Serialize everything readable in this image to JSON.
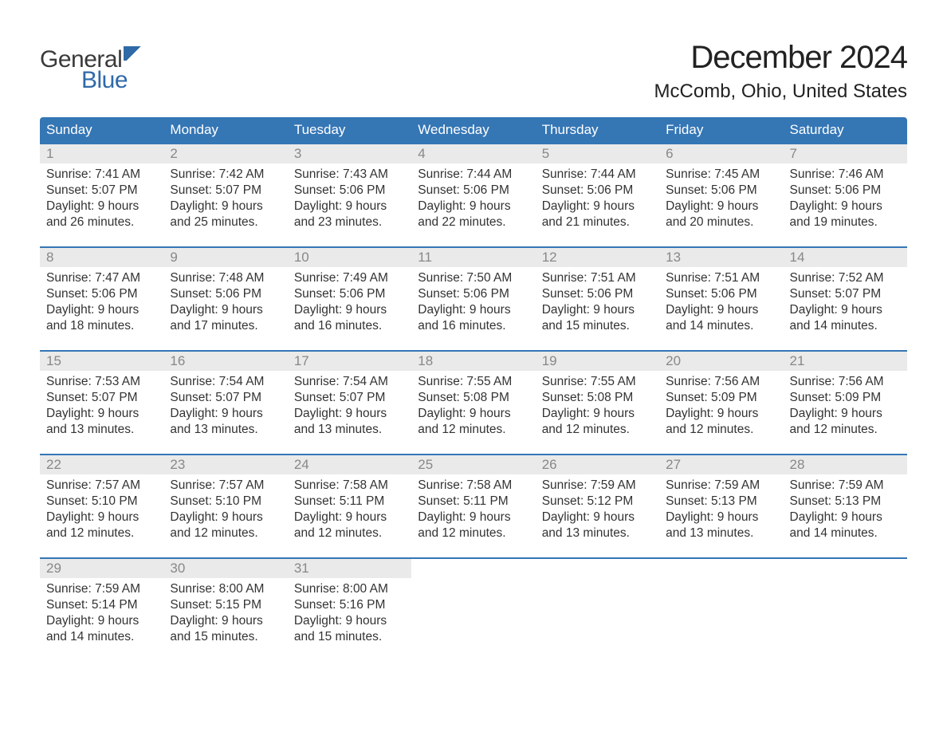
{
  "logo": {
    "word1": "General",
    "word2": "Blue"
  },
  "title": "December 2024",
  "location": "McComb, Ohio, United States",
  "colors": {
    "header_bg": "#3576b5",
    "header_text": "#ffffff",
    "accent_border": "#3576b5",
    "daynum_bg": "#eaeaea",
    "daynum_text": "#888888",
    "body_text": "#333333",
    "background": "#ffffff",
    "logo_dark": "#3a3a3a",
    "logo_blue": "#2f6aa8"
  },
  "day_names": [
    "Sunday",
    "Monday",
    "Tuesday",
    "Wednesday",
    "Thursday",
    "Friday",
    "Saturday"
  ],
  "weeks": [
    [
      {
        "n": "1",
        "sr": "Sunrise: 7:41 AM",
        "ss": "Sunset: 5:07 PM",
        "d1": "Daylight: 9 hours",
        "d2": "and 26 minutes."
      },
      {
        "n": "2",
        "sr": "Sunrise: 7:42 AM",
        "ss": "Sunset: 5:07 PM",
        "d1": "Daylight: 9 hours",
        "d2": "and 25 minutes."
      },
      {
        "n": "3",
        "sr": "Sunrise: 7:43 AM",
        "ss": "Sunset: 5:06 PM",
        "d1": "Daylight: 9 hours",
        "d2": "and 23 minutes."
      },
      {
        "n": "4",
        "sr": "Sunrise: 7:44 AM",
        "ss": "Sunset: 5:06 PM",
        "d1": "Daylight: 9 hours",
        "d2": "and 22 minutes."
      },
      {
        "n": "5",
        "sr": "Sunrise: 7:44 AM",
        "ss": "Sunset: 5:06 PM",
        "d1": "Daylight: 9 hours",
        "d2": "and 21 minutes."
      },
      {
        "n": "6",
        "sr": "Sunrise: 7:45 AM",
        "ss": "Sunset: 5:06 PM",
        "d1": "Daylight: 9 hours",
        "d2": "and 20 minutes."
      },
      {
        "n": "7",
        "sr": "Sunrise: 7:46 AM",
        "ss": "Sunset: 5:06 PM",
        "d1": "Daylight: 9 hours",
        "d2": "and 19 minutes."
      }
    ],
    [
      {
        "n": "8",
        "sr": "Sunrise: 7:47 AM",
        "ss": "Sunset: 5:06 PM",
        "d1": "Daylight: 9 hours",
        "d2": "and 18 minutes."
      },
      {
        "n": "9",
        "sr": "Sunrise: 7:48 AM",
        "ss": "Sunset: 5:06 PM",
        "d1": "Daylight: 9 hours",
        "d2": "and 17 minutes."
      },
      {
        "n": "10",
        "sr": "Sunrise: 7:49 AM",
        "ss": "Sunset: 5:06 PM",
        "d1": "Daylight: 9 hours",
        "d2": "and 16 minutes."
      },
      {
        "n": "11",
        "sr": "Sunrise: 7:50 AM",
        "ss": "Sunset: 5:06 PM",
        "d1": "Daylight: 9 hours",
        "d2": "and 16 minutes."
      },
      {
        "n": "12",
        "sr": "Sunrise: 7:51 AM",
        "ss": "Sunset: 5:06 PM",
        "d1": "Daylight: 9 hours",
        "d2": "and 15 minutes."
      },
      {
        "n": "13",
        "sr": "Sunrise: 7:51 AM",
        "ss": "Sunset: 5:06 PM",
        "d1": "Daylight: 9 hours",
        "d2": "and 14 minutes."
      },
      {
        "n": "14",
        "sr": "Sunrise: 7:52 AM",
        "ss": "Sunset: 5:07 PM",
        "d1": "Daylight: 9 hours",
        "d2": "and 14 minutes."
      }
    ],
    [
      {
        "n": "15",
        "sr": "Sunrise: 7:53 AM",
        "ss": "Sunset: 5:07 PM",
        "d1": "Daylight: 9 hours",
        "d2": "and 13 minutes."
      },
      {
        "n": "16",
        "sr": "Sunrise: 7:54 AM",
        "ss": "Sunset: 5:07 PM",
        "d1": "Daylight: 9 hours",
        "d2": "and 13 minutes."
      },
      {
        "n": "17",
        "sr": "Sunrise: 7:54 AM",
        "ss": "Sunset: 5:07 PM",
        "d1": "Daylight: 9 hours",
        "d2": "and 13 minutes."
      },
      {
        "n": "18",
        "sr": "Sunrise: 7:55 AM",
        "ss": "Sunset: 5:08 PM",
        "d1": "Daylight: 9 hours",
        "d2": "and 12 minutes."
      },
      {
        "n": "19",
        "sr": "Sunrise: 7:55 AM",
        "ss": "Sunset: 5:08 PM",
        "d1": "Daylight: 9 hours",
        "d2": "and 12 minutes."
      },
      {
        "n": "20",
        "sr": "Sunrise: 7:56 AM",
        "ss": "Sunset: 5:09 PM",
        "d1": "Daylight: 9 hours",
        "d2": "and 12 minutes."
      },
      {
        "n": "21",
        "sr": "Sunrise: 7:56 AM",
        "ss": "Sunset: 5:09 PM",
        "d1": "Daylight: 9 hours",
        "d2": "and 12 minutes."
      }
    ],
    [
      {
        "n": "22",
        "sr": "Sunrise: 7:57 AM",
        "ss": "Sunset: 5:10 PM",
        "d1": "Daylight: 9 hours",
        "d2": "and 12 minutes."
      },
      {
        "n": "23",
        "sr": "Sunrise: 7:57 AM",
        "ss": "Sunset: 5:10 PM",
        "d1": "Daylight: 9 hours",
        "d2": "and 12 minutes."
      },
      {
        "n": "24",
        "sr": "Sunrise: 7:58 AM",
        "ss": "Sunset: 5:11 PM",
        "d1": "Daylight: 9 hours",
        "d2": "and 12 minutes."
      },
      {
        "n": "25",
        "sr": "Sunrise: 7:58 AM",
        "ss": "Sunset: 5:11 PM",
        "d1": "Daylight: 9 hours",
        "d2": "and 12 minutes."
      },
      {
        "n": "26",
        "sr": "Sunrise: 7:59 AM",
        "ss": "Sunset: 5:12 PM",
        "d1": "Daylight: 9 hours",
        "d2": "and 13 minutes."
      },
      {
        "n": "27",
        "sr": "Sunrise: 7:59 AM",
        "ss": "Sunset: 5:13 PM",
        "d1": "Daylight: 9 hours",
        "d2": "and 13 minutes."
      },
      {
        "n": "28",
        "sr": "Sunrise: 7:59 AM",
        "ss": "Sunset: 5:13 PM",
        "d1": "Daylight: 9 hours",
        "d2": "and 14 minutes."
      }
    ],
    [
      {
        "n": "29",
        "sr": "Sunrise: 7:59 AM",
        "ss": "Sunset: 5:14 PM",
        "d1": "Daylight: 9 hours",
        "d2": "and 14 minutes."
      },
      {
        "n": "30",
        "sr": "Sunrise: 8:00 AM",
        "ss": "Sunset: 5:15 PM",
        "d1": "Daylight: 9 hours",
        "d2": "and 15 minutes."
      },
      {
        "n": "31",
        "sr": "Sunrise: 8:00 AM",
        "ss": "Sunset: 5:16 PM",
        "d1": "Daylight: 9 hours",
        "d2": "and 15 minutes."
      },
      null,
      null,
      null,
      null
    ]
  ]
}
